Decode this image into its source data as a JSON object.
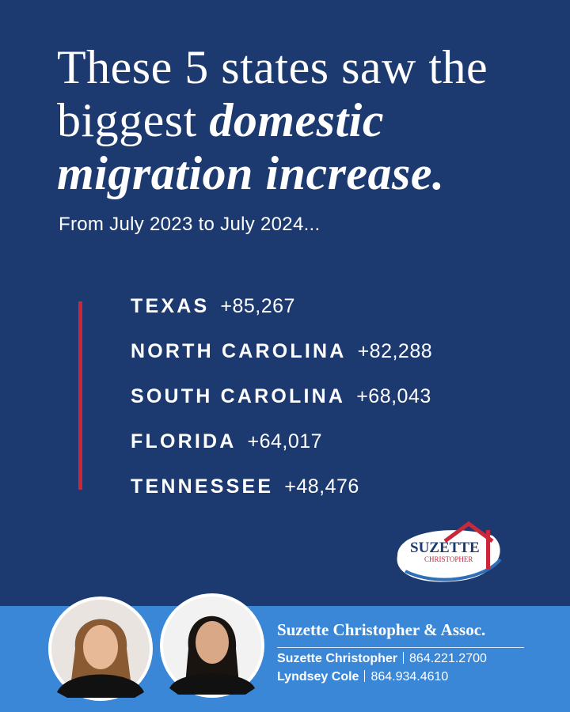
{
  "headline": {
    "line1": "These 5 states saw the",
    "line2_plain": "biggest",
    "line2_emph": "domestic",
    "line3_emph": "migration increase."
  },
  "subtitle": "From July 2023 to July 2024...",
  "states": [
    {
      "name": "TEXAS",
      "change": "+85,267"
    },
    {
      "name": "NORTH CAROLINA",
      "change": "+82,288"
    },
    {
      "name": "SOUTH CAROLINA",
      "change": "+68,043"
    },
    {
      "name": "FLORIDA",
      "change": "+64,017"
    },
    {
      "name": "TENNESSEE",
      "change": "+48,476"
    }
  ],
  "logo": {
    "line1": "SUZETTE",
    "line2": "CHRISTOPHER"
  },
  "footer": {
    "company": "Suzette Christopher & Assoc.",
    "contacts": [
      {
        "name": "Suzette Christopher",
        "phone": "864.221.2700"
      },
      {
        "name": "Lyndsey Cole",
        "phone": "864.934.4610"
      }
    ]
  }
}
